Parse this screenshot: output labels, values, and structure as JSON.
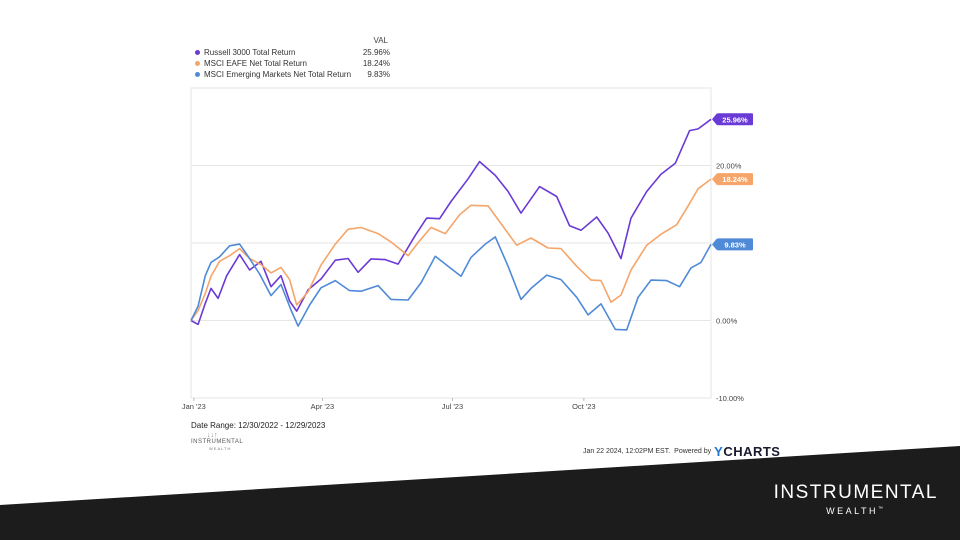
{
  "legend": {
    "header": "VAL",
    "items": [
      {
        "name": "Russell 3000 Total Return",
        "value": "25.96%",
        "color": "#6a3ad6"
      },
      {
        "name": "MSCI EAFE Net Total Return",
        "value": "18.24%",
        "color": "#f6a56a"
      },
      {
        "name": "MSCI Emerging Markets Net Total Return",
        "value": "9.83%",
        "color": "#4f8ad8"
      }
    ]
  },
  "chart_data": {
    "type": "line",
    "x_tick_labels": [
      "Jan '23",
      "Apr '23",
      "Jul '23",
      "Oct '23"
    ],
    "x_tick_dates": [
      "2023-01-01",
      "2023-04-01",
      "2023-07-01",
      "2023-10-01"
    ],
    "x_range": [
      "2022-12-30",
      "2023-12-29"
    ],
    "ylim": [
      -10,
      30
    ],
    "y_ticks": [
      -10,
      0,
      10,
      20
    ],
    "y_tick_labels": [
      "-10.00%",
      "0.00%",
      "10.00%",
      "20.00%"
    ],
    "grid": true,
    "series": [
      {
        "name": "Russell 3000 Total Return",
        "color": "#6a3ad6",
        "end_label": "25.96%",
        "points": [
          [
            "2022-12-30",
            0.0
          ],
          [
            "2023-01-04",
            -0.5
          ],
          [
            "2023-01-09",
            2.5
          ],
          [
            "2023-01-13",
            4.0
          ],
          [
            "2023-01-18",
            3.0
          ],
          [
            "2023-01-24",
            5.5
          ],
          [
            "2023-02-02",
            8.5
          ],
          [
            "2023-02-09",
            6.8
          ],
          [
            "2023-02-17",
            7.5
          ],
          [
            "2023-02-24",
            4.5
          ],
          [
            "2023-03-03",
            5.5
          ],
          [
            "2023-03-09",
            2.5
          ],
          [
            "2023-03-14",
            1.5
          ],
          [
            "2023-03-22",
            3.8
          ],
          [
            "2023-03-31",
            5.5
          ],
          [
            "2023-04-10",
            7.5
          ],
          [
            "2023-04-19",
            8.0
          ],
          [
            "2023-04-26",
            6.5
          ],
          [
            "2023-05-05",
            7.8
          ],
          [
            "2023-05-15",
            8.0
          ],
          [
            "2023-05-24",
            7.0
          ],
          [
            "2023-06-05",
            11.0
          ],
          [
            "2023-06-13",
            13.5
          ],
          [
            "2023-06-22",
            13.0
          ],
          [
            "2023-06-30",
            15.5
          ],
          [
            "2023-07-12",
            18.0
          ],
          [
            "2023-07-20",
            20.5
          ],
          [
            "2023-07-31",
            19.0
          ],
          [
            "2023-08-09",
            16.5
          ],
          [
            "2023-08-18",
            14.0
          ],
          [
            "2023-08-31",
            17.0
          ],
          [
            "2023-09-12",
            16.0
          ],
          [
            "2023-09-21",
            12.5
          ],
          [
            "2023-09-29",
            11.5
          ],
          [
            "2023-10-10",
            13.5
          ],
          [
            "2023-10-18",
            11.0
          ],
          [
            "2023-10-27",
            8.0
          ],
          [
            "2023-11-03",
            13.5
          ],
          [
            "2023-11-14",
            16.5
          ],
          [
            "2023-11-24",
            19.0
          ],
          [
            "2023-12-04",
            20.0
          ],
          [
            "2023-12-14",
            24.5
          ],
          [
            "2023-12-20",
            25.0
          ],
          [
            "2023-12-29",
            25.96
          ]
        ]
      },
      {
        "name": "MSCI EAFE Net Total Return",
        "color": "#f6a56a",
        "end_label": "18.24%",
        "points": [
          [
            "2022-12-30",
            0.0
          ],
          [
            "2023-01-04",
            1.0
          ],
          [
            "2023-01-09",
            3.5
          ],
          [
            "2023-01-13",
            6.0
          ],
          [
            "2023-01-19",
            7.5
          ],
          [
            "2023-01-26",
            8.5
          ],
          [
            "2023-02-02",
            9.0
          ],
          [
            "2023-02-09",
            8.0
          ],
          [
            "2023-02-17",
            7.5
          ],
          [
            "2023-02-24",
            6.0
          ],
          [
            "2023-03-03",
            7.0
          ],
          [
            "2023-03-09",
            5.0
          ],
          [
            "2023-03-14",
            2.0
          ],
          [
            "2023-03-22",
            4.0
          ],
          [
            "2023-03-31",
            7.0
          ],
          [
            "2023-04-10",
            10.0
          ],
          [
            "2023-04-19",
            11.5
          ],
          [
            "2023-04-28",
            12.0
          ],
          [
            "2023-05-10",
            11.5
          ],
          [
            "2023-05-19",
            10.0
          ],
          [
            "2023-05-31",
            8.5
          ],
          [
            "2023-06-08",
            10.0
          ],
          [
            "2023-06-16",
            12.0
          ],
          [
            "2023-06-26",
            11.5
          ],
          [
            "2023-07-06",
            13.5
          ],
          [
            "2023-07-14",
            15.0
          ],
          [
            "2023-07-26",
            14.5
          ],
          [
            "2023-08-04",
            12.5
          ],
          [
            "2023-08-15",
            10.0
          ],
          [
            "2023-08-25",
            10.5
          ],
          [
            "2023-09-06",
            9.5
          ],
          [
            "2023-09-15",
            9.0
          ],
          [
            "2023-09-26",
            7.0
          ],
          [
            "2023-10-06",
            5.5
          ],
          [
            "2023-10-13",
            5.0
          ],
          [
            "2023-10-20",
            2.5
          ],
          [
            "2023-10-27",
            3.0
          ],
          [
            "2023-11-03",
            6.5
          ],
          [
            "2023-11-14",
            10.0
          ],
          [
            "2023-11-24",
            11.0
          ],
          [
            "2023-12-05",
            12.5
          ],
          [
            "2023-12-13",
            14.5
          ],
          [
            "2023-12-20",
            17.0
          ],
          [
            "2023-12-29",
            18.24
          ]
        ]
      },
      {
        "name": "MSCI Emerging Markets Net Total Return",
        "color": "#4f8ad8",
        "end_label": "9.83%",
        "points": [
          [
            "2022-12-30",
            0.0
          ],
          [
            "2023-01-04",
            2.0
          ],
          [
            "2023-01-09",
            5.5
          ],
          [
            "2023-01-13",
            7.5
          ],
          [
            "2023-01-19",
            8.5
          ],
          [
            "2023-01-26",
            9.5
          ],
          [
            "2023-02-02",
            10.0
          ],
          [
            "2023-02-08",
            8.0
          ],
          [
            "2023-02-16",
            6.0
          ],
          [
            "2023-02-24",
            3.5
          ],
          [
            "2023-03-03",
            4.5
          ],
          [
            "2023-03-10",
            1.5
          ],
          [
            "2023-03-15",
            -1.0
          ],
          [
            "2023-03-23",
            2.0
          ],
          [
            "2023-03-31",
            4.5
          ],
          [
            "2023-04-10",
            5.0
          ],
          [
            "2023-04-20",
            4.0
          ],
          [
            "2023-04-28",
            3.5
          ],
          [
            "2023-05-10",
            4.5
          ],
          [
            "2023-05-19",
            3.0
          ],
          [
            "2023-05-31",
            2.5
          ],
          [
            "2023-06-09",
            5.0
          ],
          [
            "2023-06-19",
            8.0
          ],
          [
            "2023-06-28",
            7.0
          ],
          [
            "2023-07-07",
            6.0
          ],
          [
            "2023-07-14",
            8.0
          ],
          [
            "2023-07-24",
            10.0
          ],
          [
            "2023-07-31",
            10.5
          ],
          [
            "2023-08-09",
            7.0
          ],
          [
            "2023-08-18",
            3.0
          ],
          [
            "2023-08-25",
            4.0
          ],
          [
            "2023-09-05",
            6.0
          ],
          [
            "2023-09-15",
            5.0
          ],
          [
            "2023-09-26",
            3.0
          ],
          [
            "2023-10-04",
            1.0
          ],
          [
            "2023-10-13",
            2.0
          ],
          [
            "2023-10-23",
            -1.0
          ],
          [
            "2023-10-31",
            -1.5
          ],
          [
            "2023-11-08",
            3.0
          ],
          [
            "2023-11-17",
            5.5
          ],
          [
            "2023-11-28",
            5.0
          ],
          [
            "2023-12-07",
            4.5
          ],
          [
            "2023-12-15",
            6.5
          ],
          [
            "2023-12-22",
            7.5
          ],
          [
            "2023-12-29",
            9.83
          ]
        ]
      }
    ]
  },
  "date_range": "Date Range: 12/30/2022 - 12/29/2023",
  "small_logo": {
    "line1": "INSTRUMENTAL",
    "line2": "WEALTH"
  },
  "footer": {
    "timestamp": "Jan 22 2024, 12:02PM EST.",
    "powered": "Powered by",
    "brand_y": "Y",
    "brand_rest": "CHARTS"
  },
  "corner_brand": {
    "line1": "INSTRUMENTAL",
    "line2": "WEALTH",
    "tm": "™"
  },
  "colors": {
    "band": "#1c1c1c",
    "grid": "#e6e6e6"
  }
}
